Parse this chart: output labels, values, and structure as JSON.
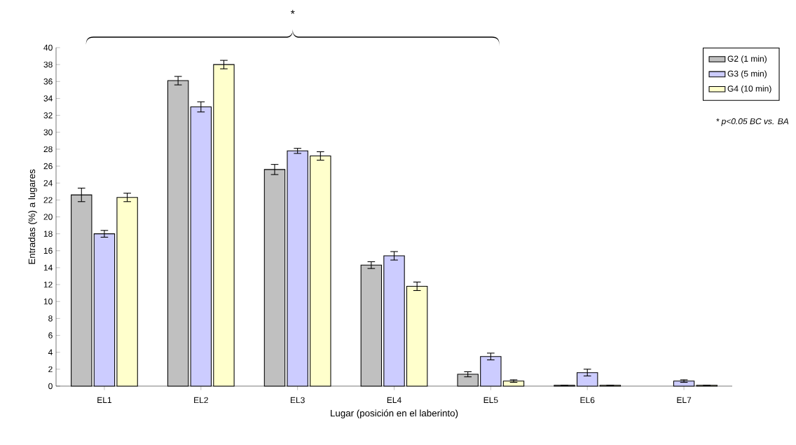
{
  "chart_data": {
    "type": "bar",
    "xlabel": "Lugar (posición en el laberinto)",
    "ylabel": "Entradas (%) a lugares",
    "categories": [
      "EL1",
      "EL2",
      "EL3",
      "EL4",
      "EL5",
      "EL6",
      "EL7"
    ],
    "series": [
      {
        "name": "G2 (1 min)",
        "color": "#c0c0c0",
        "values": [
          22.6,
          36.1,
          25.6,
          14.3,
          1.4,
          0.1,
          null
        ],
        "errors": [
          0.8,
          0.5,
          0.6,
          0.4,
          0.3,
          null,
          null
        ]
      },
      {
        "name": "G3 (5 min)",
        "color": "#ccccff",
        "values": [
          18.0,
          33.0,
          27.8,
          15.4,
          3.5,
          1.6,
          0.6
        ],
        "errors": [
          0.4,
          0.6,
          0.3,
          0.5,
          0.4,
          0.4,
          0.15
        ]
      },
      {
        "name": "G4 (10 min)",
        "color": "#ffffcc",
        "values": [
          22.3,
          38.0,
          27.2,
          11.8,
          0.6,
          0.1,
          0.1
        ],
        "errors": [
          0.5,
          0.5,
          0.5,
          0.5,
          0.15,
          null,
          null
        ]
      }
    ],
    "ylim": [
      0,
      40
    ],
    "yticks": [
      0,
      2,
      4,
      6,
      8,
      10,
      12,
      14,
      16,
      18,
      20,
      22,
      24,
      26,
      28,
      30,
      32,
      34,
      36,
      38,
      40
    ],
    "grid": false,
    "legend": "top right",
    "annotations": [
      "*",
      "* p<0.05  BC vs. BA"
    ]
  }
}
